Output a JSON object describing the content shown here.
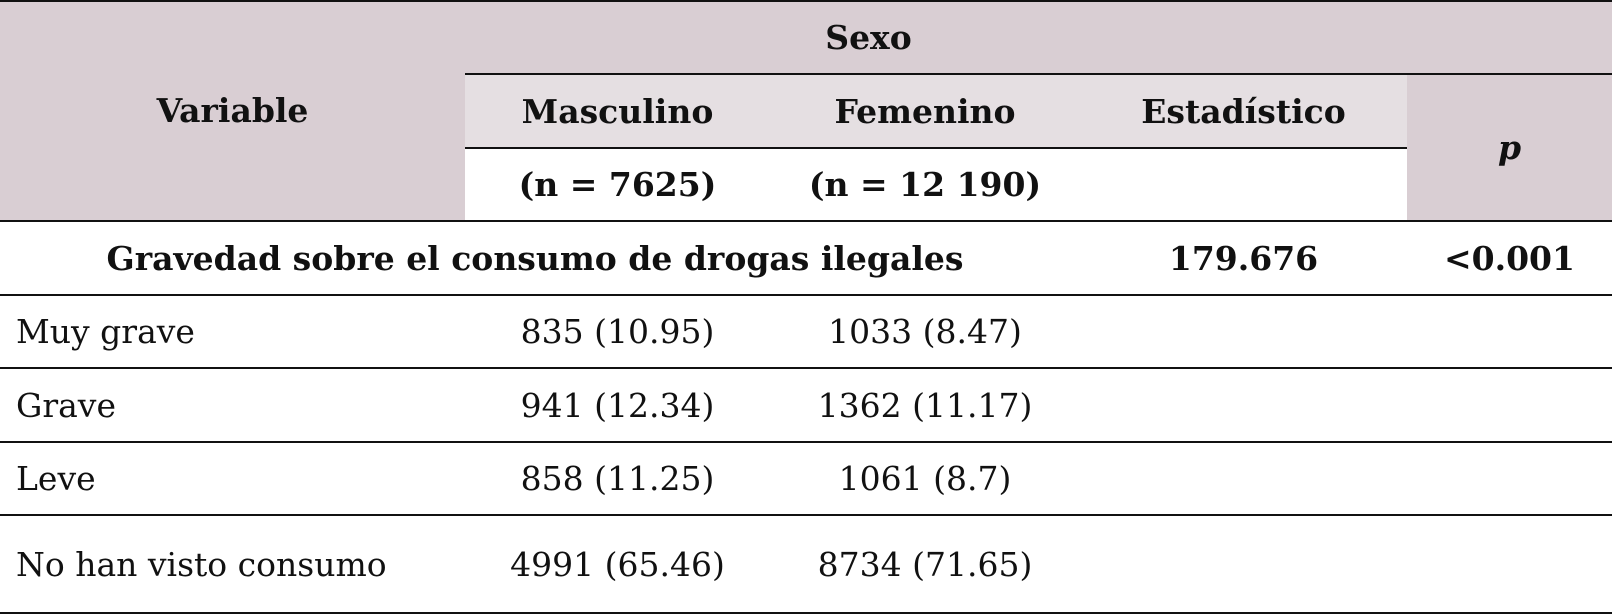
{
  "header": {
    "variable": "Variable",
    "group": "Sexo",
    "columns": [
      "Masculino",
      "Femenino"
    ],
    "n": [
      "(n = 7625)",
      "(n = 12 190)"
    ],
    "statistic": "Estadístico",
    "p": "p"
  },
  "section": {
    "label": "Gravedad sobre el consumo de drogas ilegales",
    "statistic": "179.676",
    "p": "<0.001"
  },
  "rows": [
    [
      "Muy grave",
      "835 (10.95)",
      "1033 (8.47)"
    ],
    [
      "Grave",
      "941 (12.34)",
      "1362 (11.17)"
    ],
    [
      "Leve",
      "858 (11.25)",
      "1061 (8.7)"
    ],
    [
      "No han visto consumo",
      "4991 (65.46)",
      "8734 (71.65)"
    ]
  ]
}
